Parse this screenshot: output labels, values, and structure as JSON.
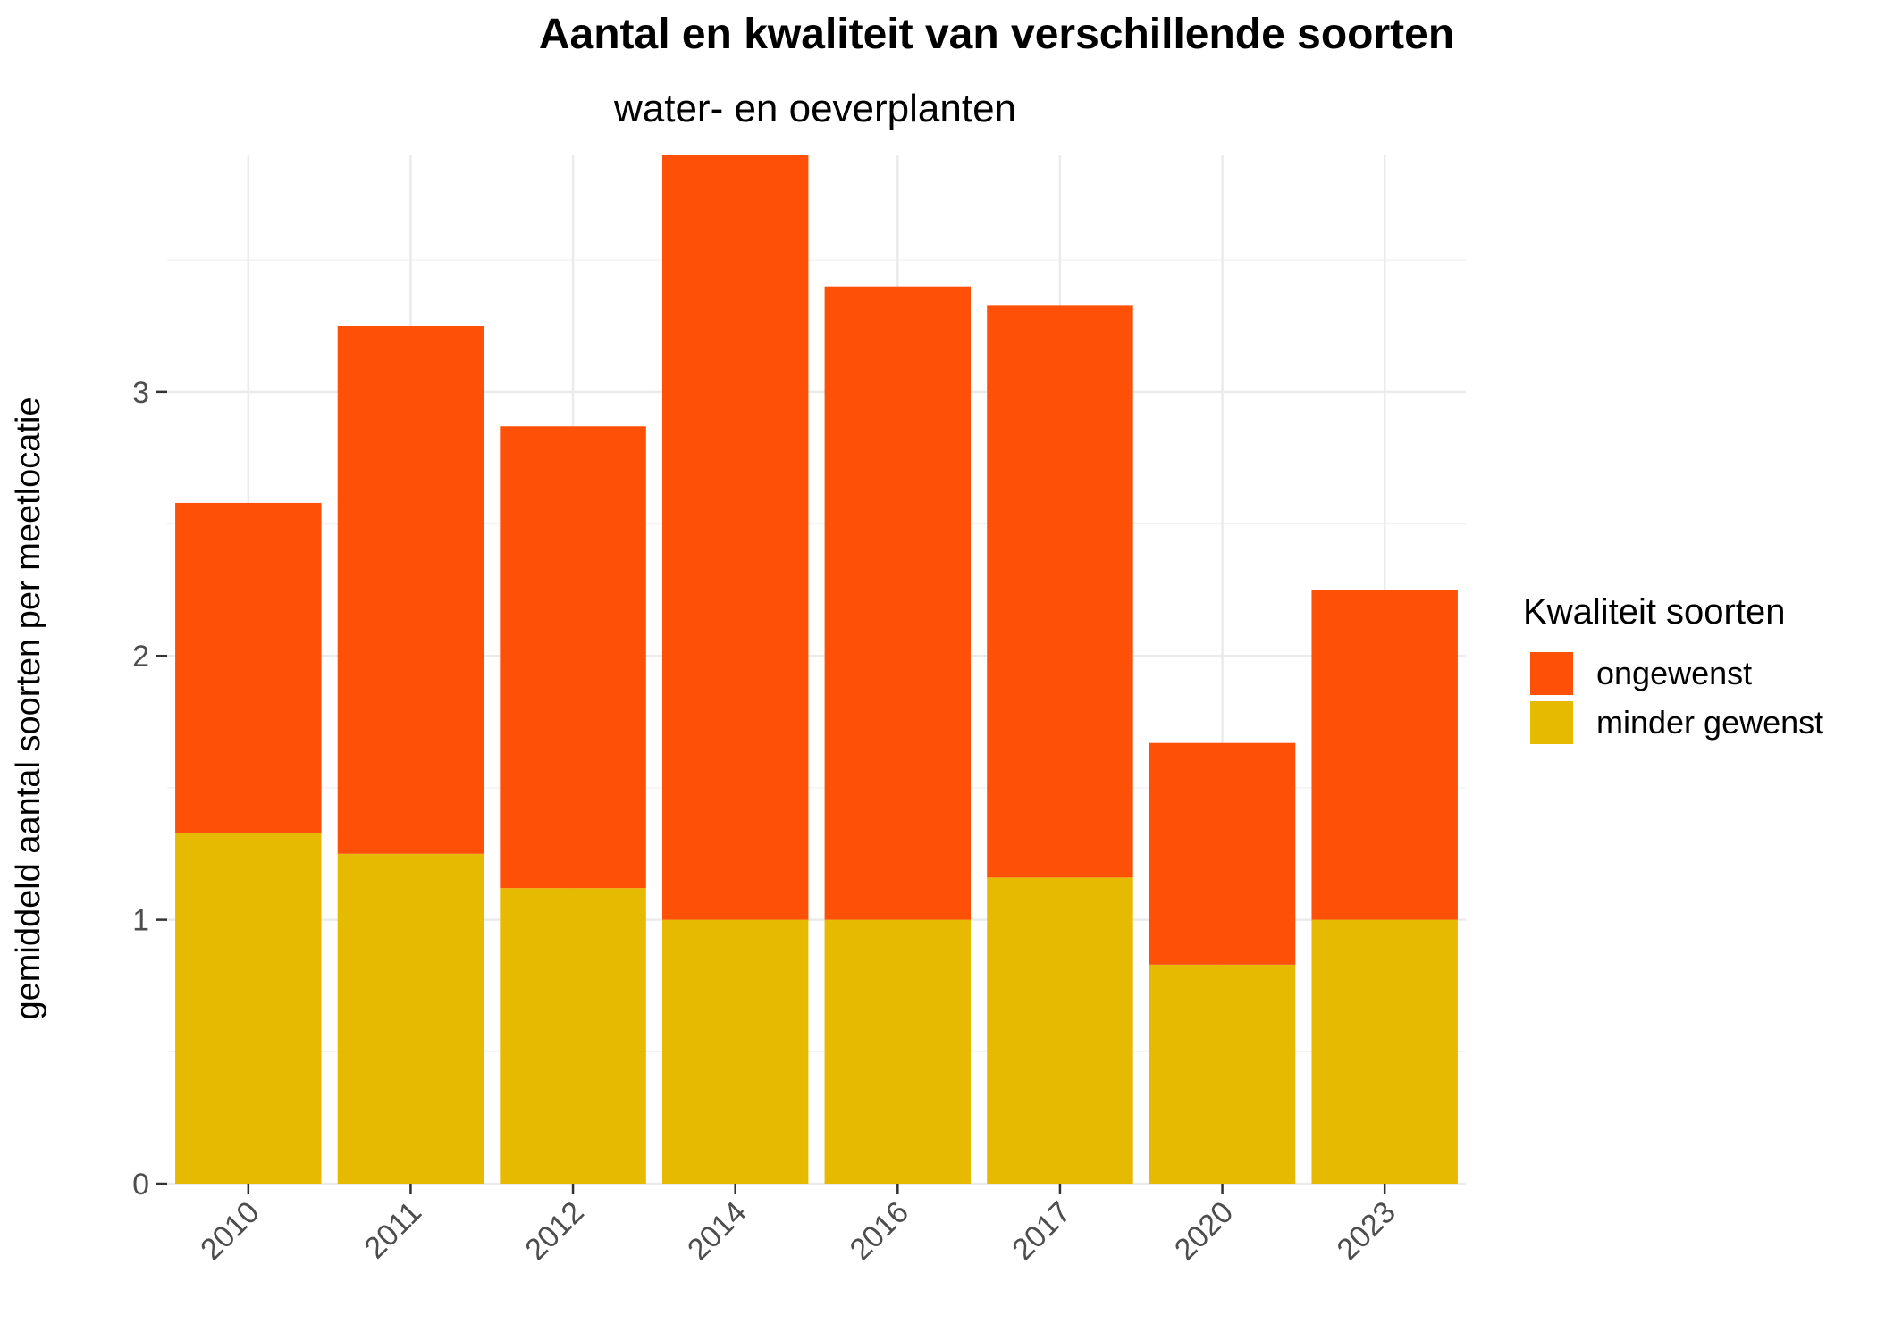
{
  "chart_data": {
    "type": "bar",
    "stacked": true,
    "title": "Aantal en kwaliteit van verschillende soorten",
    "subtitle": "water- en oeverplanten",
    "xlabel": "",
    "ylabel": "gemiddeld aantal soorten per meetlocatie",
    "categories": [
      "2010",
      "2011",
      "2012",
      "2014",
      "2016",
      "2017",
      "2020",
      "2023"
    ],
    "series": [
      {
        "name": "minder gewenst",
        "color": "#E6BA00",
        "values": [
          1.33,
          1.25,
          1.12,
          1.0,
          1.0,
          1.16,
          0.83,
          1.0
        ]
      },
      {
        "name": "ongewenst",
        "color": "#FF5008",
        "values": [
          1.25,
          2.0,
          1.75,
          2.9,
          2.4,
          2.17,
          0.84,
          1.25
        ]
      }
    ],
    "ylim": [
      0,
      3.9
    ],
    "yticks": [
      "0",
      "1",
      "2",
      "3"
    ],
    "grid": true,
    "legend": {
      "title": "Kwaliteit soorten",
      "position": "right",
      "order": [
        "ongewenst",
        "minder gewenst"
      ]
    }
  }
}
